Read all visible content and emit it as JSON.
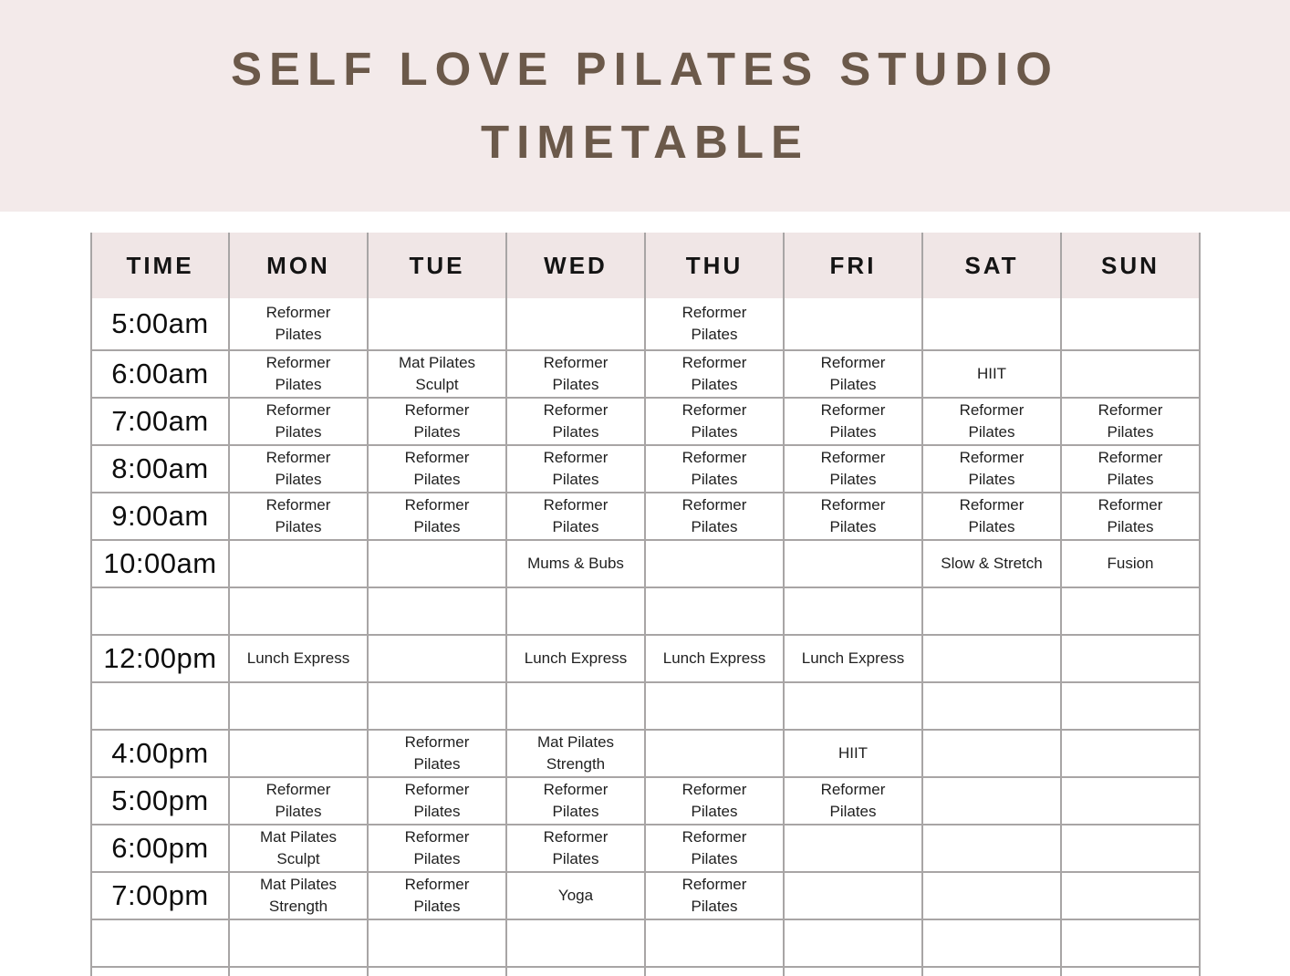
{
  "banner": {
    "title_line1": "SELF LOVE PILATES STUDIO",
    "title_line2": "TIMETABLE"
  },
  "colors": {
    "banner_bg": "#f3eaea",
    "header_bg": "#f0e6e6",
    "title_brown": "#6b594a",
    "grid_line": "#a8a5a5",
    "text_dark": "#1f1f1f"
  },
  "table": {
    "columns": [
      "TIME",
      "MON",
      "TUE",
      "WED",
      "THU",
      "FRI",
      "SAT",
      "SUN"
    ],
    "rows": [
      {
        "time": "5:00am",
        "cells": [
          "Reformer Pilates",
          "",
          "",
          "Reformer Pilates",
          "",
          "",
          ""
        ]
      },
      {
        "time": "6:00am",
        "cells": [
          "Reformer Pilates",
          "Mat Pilates Sculpt",
          "Reformer Pilates",
          "Reformer Pilates",
          "Reformer Pilates",
          "HIIT",
          ""
        ]
      },
      {
        "time": "7:00am",
        "cells": [
          "Reformer Pilates",
          "Reformer Pilates",
          "Reformer Pilates",
          "Reformer Pilates",
          "Reformer Pilates",
          "Reformer Pilates",
          "Reformer Pilates"
        ]
      },
      {
        "time": "8:00am",
        "cells": [
          "Reformer Pilates",
          "Reformer Pilates",
          "Reformer Pilates",
          "Reformer Pilates",
          "Reformer Pilates",
          "Reformer Pilates",
          "Reformer Pilates"
        ]
      },
      {
        "time": "9:00am",
        "cells": [
          "Reformer Pilates",
          "Reformer Pilates",
          "Reformer Pilates",
          "Reformer Pilates",
          "Reformer Pilates",
          "Reformer Pilates",
          "Reformer Pilates"
        ]
      },
      {
        "time": "10:00am",
        "cells": [
          "",
          "",
          "Mums & Bubs",
          "",
          "",
          "Slow & Stretch",
          "Fusion"
        ]
      },
      {
        "time": "",
        "cells": [
          "",
          "",
          "",
          "",
          "",
          "",
          ""
        ]
      },
      {
        "time": "12:00pm",
        "cells": [
          "Lunch Express",
          "",
          "Lunch Express",
          "Lunch Express",
          "Lunch Express",
          "",
          ""
        ]
      },
      {
        "time": "",
        "cells": [
          "",
          "",
          "",
          "",
          "",
          "",
          ""
        ]
      },
      {
        "time": "4:00pm",
        "cells": [
          "",
          "Reformer Pilates",
          "Mat Pilates Strength",
          "",
          "HIIT",
          "",
          ""
        ]
      },
      {
        "time": "5:00pm",
        "cells": [
          "Reformer Pilates",
          "Reformer Pilates",
          "Reformer Pilates",
          "Reformer Pilates",
          "Reformer Pilates",
          "",
          ""
        ]
      },
      {
        "time": "6:00pm",
        "cells": [
          "Mat Pilates Sculpt",
          "Reformer Pilates",
          "Reformer Pilates",
          "Reformer Pilates",
          "",
          "",
          ""
        ]
      },
      {
        "time": "7:00pm",
        "cells": [
          "Mat Pilates Strength",
          "Reformer Pilates",
          "Yoga",
          "Reformer Pilates",
          "",
          "",
          ""
        ]
      },
      {
        "time": "",
        "cells": [
          "",
          "",
          "",
          "",
          "",
          "",
          ""
        ]
      },
      {
        "time": "",
        "cells": [
          "",
          "",
          "",
          "",
          "",
          "",
          ""
        ]
      }
    ]
  }
}
